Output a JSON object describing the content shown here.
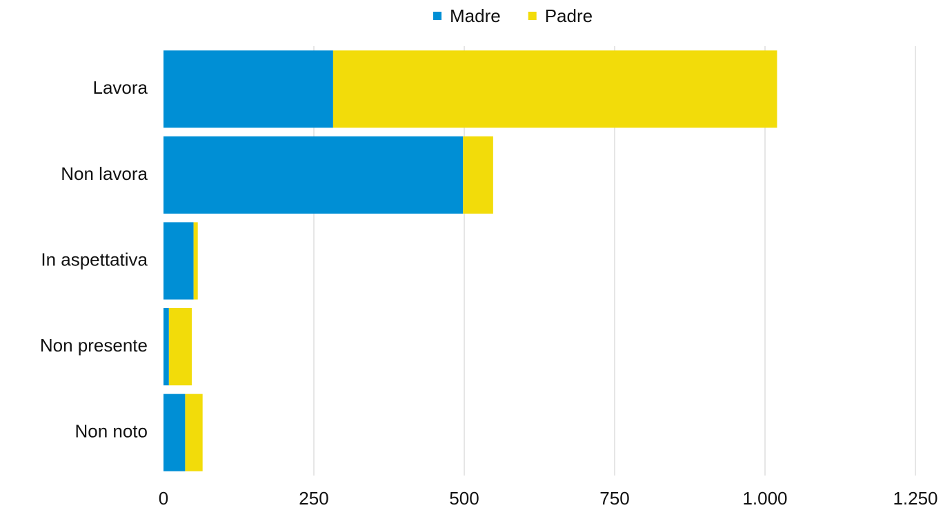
{
  "chart_data": {
    "type": "bar",
    "orientation": "horizontal",
    "stacked": true,
    "categories": [
      "Lavora",
      "Non lavora",
      "In aspettativa",
      "Non presente",
      "Non noto"
    ],
    "series": [
      {
        "name": "Madre",
        "color": "#008fd5",
        "values": [
          282,
          498,
          50,
          9,
          36
        ]
      },
      {
        "name": "Padre",
        "color": "#f2dc0a",
        "values": [
          738,
          50,
          7,
          38,
          29
        ]
      }
    ],
    "xlim": [
      0,
      1250
    ],
    "xticks": [
      0,
      250,
      500,
      750,
      {
        "value": 1000,
        "label": "1.000"
      },
      {
        "value": 1250,
        "label": "1.250"
      }
    ],
    "grid": true,
    "legend": "top"
  }
}
